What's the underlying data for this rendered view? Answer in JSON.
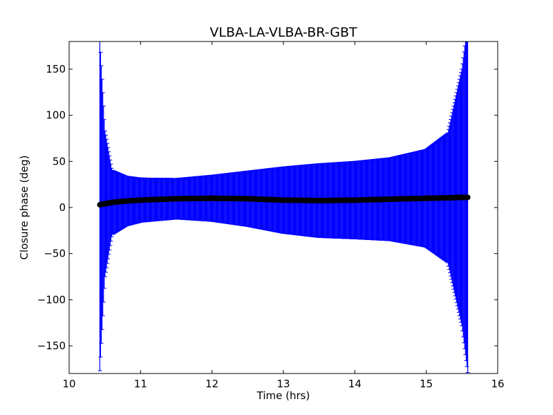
{
  "chart_data": {
    "type": "scatter",
    "title": "VLBA-LA-VLBA-BR-GBT",
    "xlabel": "Time (hrs)",
    "ylabel": "Closure phase (deg)",
    "xlim": [
      10,
      16
    ],
    "ylim": [
      -180,
      180
    ],
    "xticks": [
      10,
      11,
      12,
      13,
      14,
      15,
      16
    ],
    "yticks": [
      -150,
      -100,
      -50,
      0,
      50,
      100,
      150
    ],
    "xtick_labels": [
      "10",
      "11",
      "12",
      "13",
      "14",
      "15",
      "16"
    ],
    "ytick_labels": [
      "−150",
      "−100",
      "−50",
      "0",
      "50",
      "100",
      "150"
    ],
    "grid": false,
    "series": [
      {
        "marker": "circle",
        "color": "#000000",
        "errorbar_color": "#0000ff",
        "x_range": [
          10.43,
          15.58
        ],
        "samples": 500,
        "profile_x": [
          10.43,
          10.5,
          10.6,
          10.8,
          11.0,
          11.5,
          12.0,
          12.5,
          13.0,
          13.5,
          14.0,
          14.5,
          15.0,
          15.3,
          15.5,
          15.58
        ],
        "profile_y": [
          3,
          4,
          5.5,
          7,
          8,
          9.5,
          10,
          9.5,
          8,
          7.5,
          8,
          9,
          10,
          10.5,
          11,
          11
        ],
        "profile_err": [
          180,
          80,
          35,
          27,
          24,
          22,
          25,
          30,
          36,
          40,
          42,
          45,
          53,
          70,
          140,
          190
        ]
      }
    ]
  }
}
